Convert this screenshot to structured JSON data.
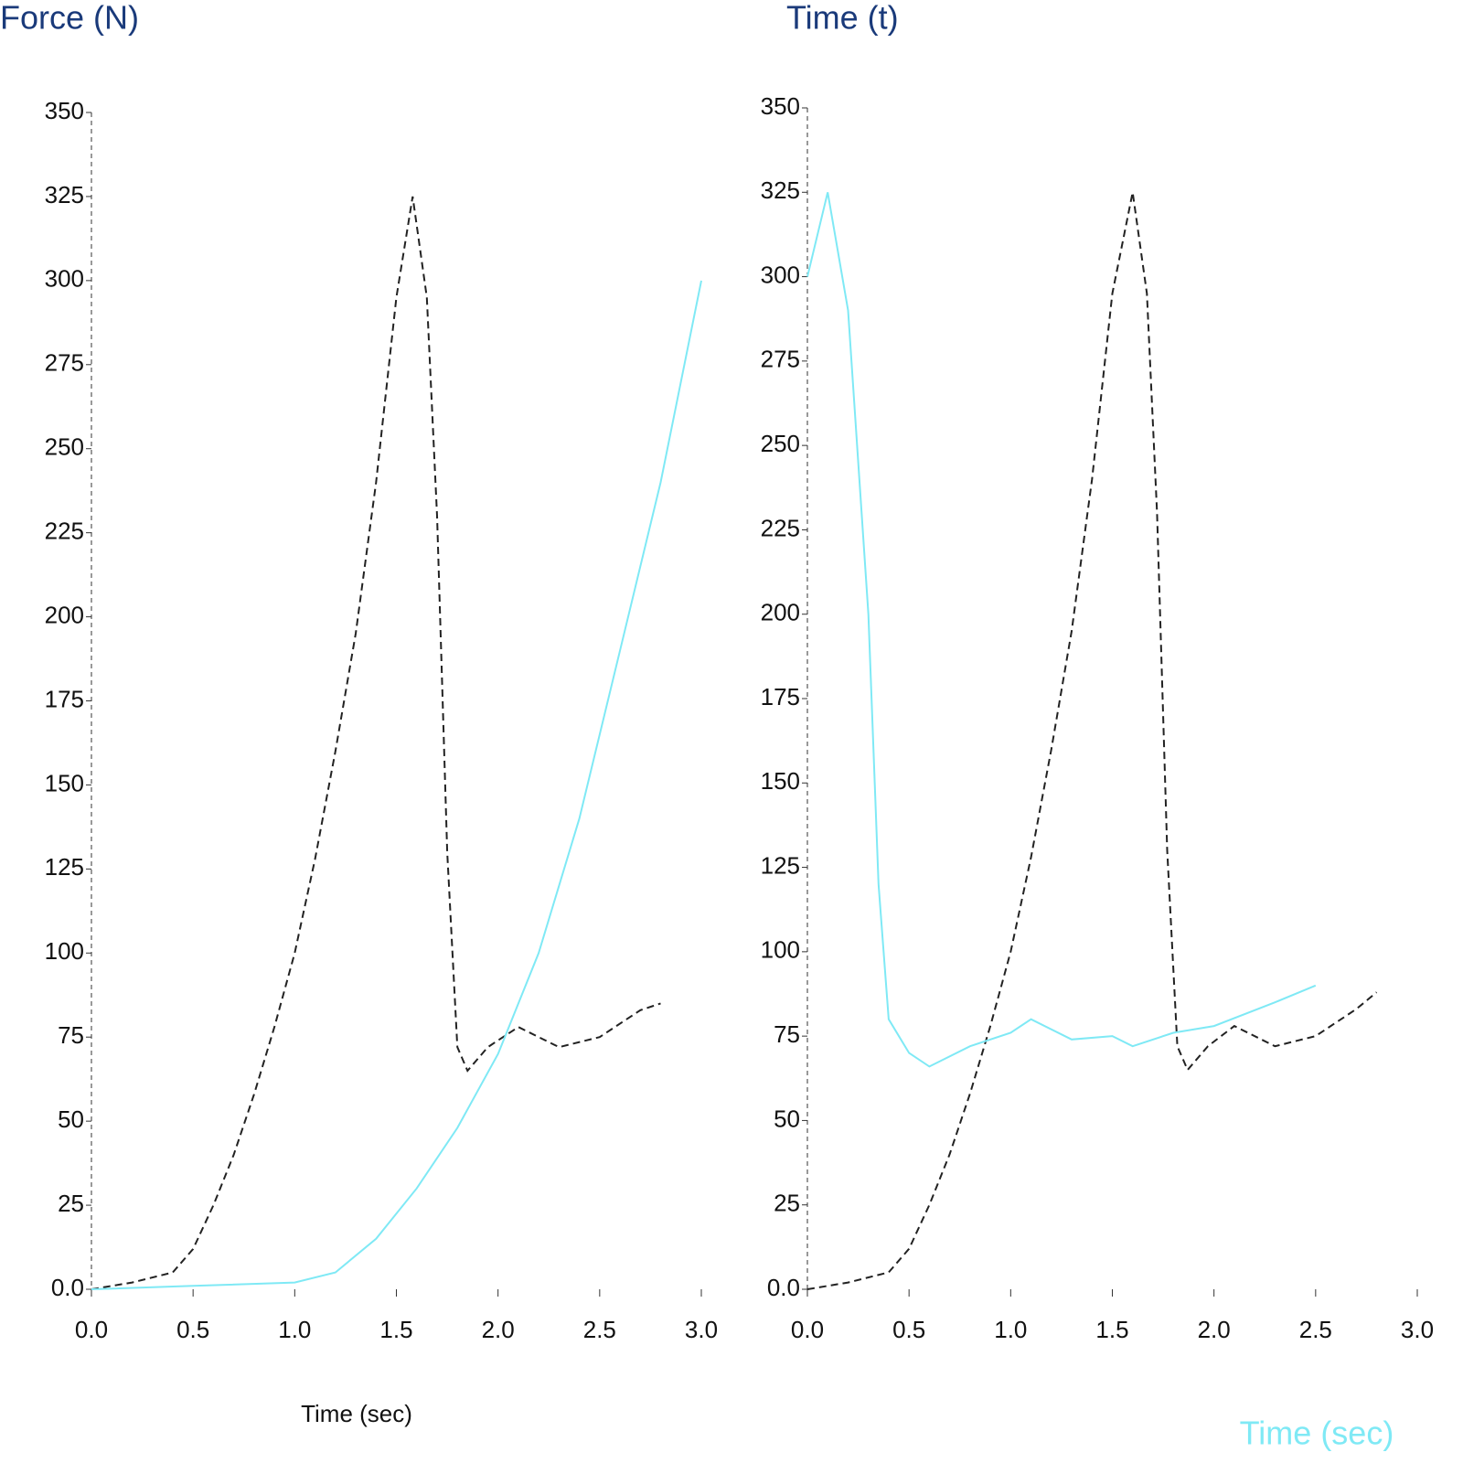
{
  "chart_data": [
    {
      "type": "line",
      "ylabel": "Force (N)",
      "xlabel": "Time (sec)",
      "xlim": [
        0,
        3.0
      ],
      "ylim": [
        0,
        350
      ],
      "xticks": [
        {
          "value": 0,
          "label": "0.0"
        },
        0.5,
        {
          "value": 1,
          "label": "1.0"
        },
        1.5,
        {
          "value": 2,
          "label": "2.0"
        },
        2.5,
        {
          "value": 3,
          "label": "3.0"
        }
      ],
      "yticks": [
        {
          "value": 0,
          "label": "0.0"
        },
        25,
        50,
        75,
        100,
        125,
        150,
        175,
        200,
        225,
        250,
        275,
        300,
        325,
        350
      ],
      "series": [
        {
          "color": "#222222",
          "dashed": true,
          "x": [
            0,
            0.2,
            0.4,
            0.5,
            0.6,
            0.7,
            0.8,
            0.9,
            1.0,
            1.1,
            1.2,
            1.3,
            1.4,
            1.5,
            1.58,
            1.65,
            1.7,
            1.75,
            1.8,
            1.85,
            1.95,
            2.1,
            2.3,
            2.5,
            2.7,
            2.8
          ],
          "values": [
            0,
            2,
            5,
            12,
            25,
            40,
            58,
            78,
            100,
            128,
            160,
            195,
            240,
            295,
            325,
            295,
            230,
            130,
            72,
            65,
            72,
            78,
            72,
            75,
            83,
            85
          ]
        },
        {
          "color": "#7fe9f5",
          "dashed": false,
          "x": [
            0,
            0.5,
            1.0,
            1.2,
            1.4,
            1.6,
            1.8,
            2.0,
            2.2,
            2.4,
            2.6,
            2.8,
            3.0
          ],
          "values": [
            0,
            1,
            2,
            5,
            15,
            30,
            48,
            70,
            100,
            140,
            190,
            240,
            300
          ]
        }
      ]
    },
    {
      "type": "line",
      "title": "Time (t)",
      "xlabel": "Time (sec)",
      "xlim": [
        0,
        3.0
      ],
      "ylim": [
        0,
        350
      ],
      "xticks": [
        {
          "value": 0,
          "label": "0.0"
        },
        0.5,
        {
          "value": 1,
          "label": "1.0"
        },
        1.5,
        {
          "value": 2,
          "label": "2.0"
        },
        2.5,
        {
          "value": 3,
          "label": "3.0"
        }
      ],
      "yticks": [
        {
          "value": 0,
          "label": "0.0"
        },
        25,
        50,
        75,
        100,
        125,
        150,
        175,
        200,
        225,
        250,
        275,
        300,
        325,
        350
      ],
      "series": [
        {
          "color": "#222222",
          "dashed": true,
          "x": [
            0,
            0.2,
            0.4,
            0.5,
            0.6,
            0.7,
            0.8,
            0.9,
            1.0,
            1.1,
            1.2,
            1.3,
            1.4,
            1.5,
            1.6,
            1.67,
            1.72,
            1.77,
            1.82,
            1.87,
            1.97,
            2.1,
            2.3,
            2.5,
            2.7,
            2.8
          ],
          "values": [
            0,
            2,
            5,
            12,
            25,
            40,
            58,
            78,
            100,
            128,
            160,
            195,
            240,
            295,
            325,
            295,
            230,
            130,
            72,
            65,
            72,
            78,
            72,
            75,
            83,
            88
          ]
        },
        {
          "color": "#7fe9f5",
          "dashed": false,
          "x": [
            0,
            0.1,
            0.2,
            0.3,
            0.35,
            0.4,
            0.5,
            0.6,
            0.8,
            1.0,
            1.1,
            1.3,
            1.5,
            1.6,
            1.8,
            2.0,
            2.3,
            2.5
          ],
          "values": [
            300,
            325,
            290,
            200,
            120,
            80,
            70,
            66,
            72,
            76,
            80,
            74,
            75,
            72,
            76,
            78,
            85,
            90
          ]
        }
      ]
    }
  ]
}
